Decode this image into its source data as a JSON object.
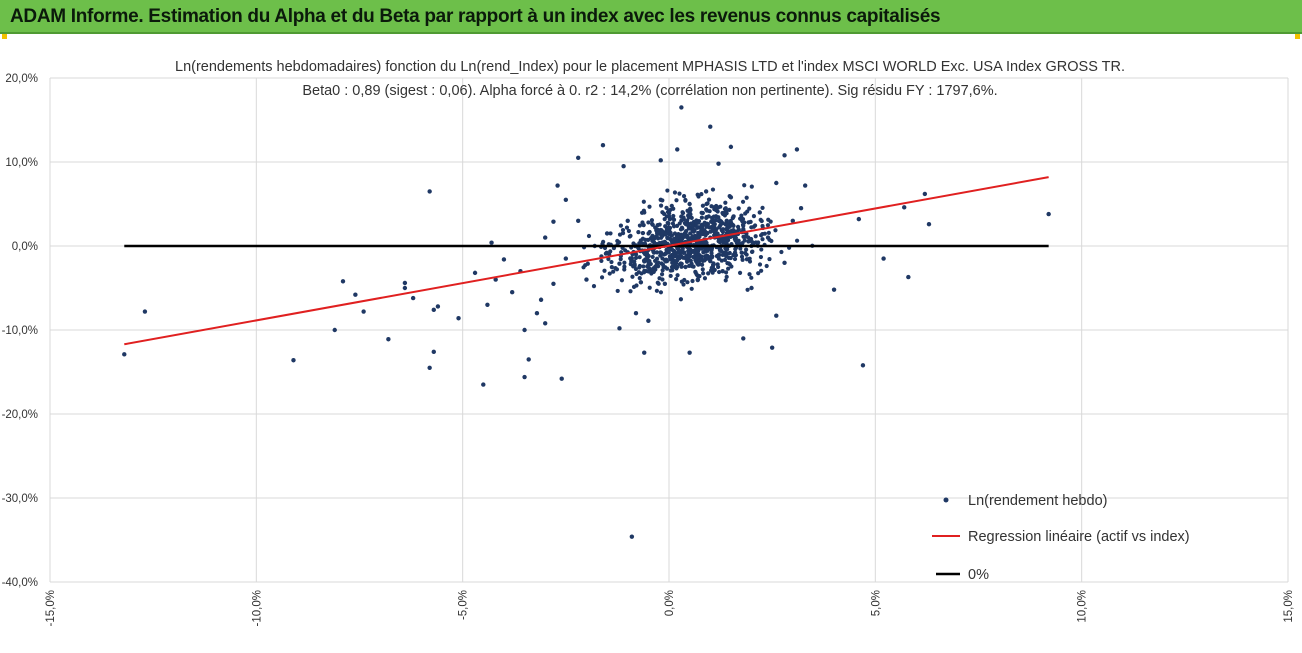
{
  "header": {
    "title": "ADAM Informe. Estimation du Alpha et du Beta par rapport à un index avec les revenus connus capitalisés"
  },
  "colors": {
    "header_bg": "#6dbf4a",
    "points": "#1f3864",
    "regression": "#e02020",
    "zero_line": "#000000",
    "grid": "#d9d9d9"
  },
  "chart_data": {
    "type": "scatter",
    "title": "Ln(rendements hebdomadaires) fonction du Ln(rend_Index) pour le placement MPHASIS LTD et l'index MSCI WORLD Exc. USA Index GROSS TR.",
    "subtitle": "Beta0 : 0,89 (sigest : 0,06). Alpha forcé à 0. r2 : 14,2% (corrélation non pertinente). Sig résidu FY : 1797,6%.",
    "xlabel": "",
    "ylabel": "",
    "xlim": [
      -0.15,
      0.15
    ],
    "ylim": [
      -0.4,
      0.2
    ],
    "x_ticks": [
      -0.15,
      -0.1,
      -0.05,
      0.0,
      0.05,
      0.1,
      0.15
    ],
    "x_tick_labels": [
      "-15,0%",
      "-10,0%",
      "-5,0%",
      "0,0%",
      "5,0%",
      "10,0%",
      "15,0%"
    ],
    "y_ticks": [
      0.2,
      0.1,
      0.0,
      -0.1,
      -0.2,
      -0.3,
      -0.4
    ],
    "y_tick_labels": [
      "20,0%",
      "10,0%",
      "0,0%",
      "-10,0%",
      "-20,0%",
      "-30,0%",
      "-40,0%"
    ],
    "grid": true,
    "legend_position": "bottom-right",
    "series": [
      {
        "name": "Ln(rendement hebdo)",
        "kind": "scatter",
        "points": [
          [
            -0.132,
            -0.129
          ],
          [
            -0.127,
            -0.078
          ],
          [
            -0.091,
            -0.136
          ],
          [
            -0.079,
            -0.042
          ],
          [
            -0.081,
            -0.1
          ],
          [
            -0.076,
            -0.058
          ],
          [
            -0.074,
            -0.078
          ],
          [
            -0.068,
            -0.111
          ],
          [
            -0.064,
            -0.044
          ],
          [
            -0.064,
            -0.05
          ],
          [
            -0.062,
            -0.062
          ],
          [
            -0.058,
            0.065
          ],
          [
            -0.058,
            -0.145
          ],
          [
            -0.057,
            -0.126
          ],
          [
            -0.057,
            -0.076
          ],
          [
            -0.056,
            -0.072
          ],
          [
            -0.051,
            -0.086
          ],
          [
            -0.047,
            -0.032
          ],
          [
            -0.045,
            -0.165
          ],
          [
            -0.044,
            -0.07
          ],
          [
            -0.043,
            0.004
          ],
          [
            -0.042,
            -0.04
          ],
          [
            -0.04,
            -0.016
          ],
          [
            -0.038,
            -0.055
          ],
          [
            -0.036,
            -0.03
          ],
          [
            -0.035,
            -0.1
          ],
          [
            -0.035,
            -0.156
          ],
          [
            -0.034,
            -0.135
          ],
          [
            -0.032,
            -0.08
          ],
          [
            -0.031,
            -0.064
          ],
          [
            -0.03,
            -0.092
          ],
          [
            -0.028,
            0.029
          ],
          [
            -0.027,
            0.072
          ],
          [
            -0.026,
            -0.158
          ],
          [
            -0.025,
            0.055
          ],
          [
            -0.022,
            0.105
          ],
          [
            -0.016,
            0.12
          ],
          [
            -0.011,
            0.095
          ],
          [
            -0.012,
            -0.098
          ],
          [
            -0.008,
            -0.08
          ],
          [
            -0.006,
            -0.127
          ],
          [
            -0.005,
            -0.089
          ],
          [
            -0.002,
            0.102
          ],
          [
            0.002,
            0.115
          ],
          [
            0.003,
            0.165
          ],
          [
            0.005,
            -0.127
          ],
          [
            0.01,
            0.142
          ],
          [
            0.012,
            0.098
          ],
          [
            0.015,
            0.118
          ],
          [
            0.018,
            -0.11
          ],
          [
            0.025,
            -0.121
          ],
          [
            0.026,
            -0.083
          ],
          [
            0.028,
            0.108
          ],
          [
            0.031,
            0.115
          ],
          [
            0.033,
            0.072
          ],
          [
            0.04,
            -0.052
          ],
          [
            0.046,
            0.032
          ],
          [
            0.047,
            -0.142
          ],
          [
            0.052,
            -0.015
          ],
          [
            0.057,
            0.046
          ],
          [
            0.058,
            -0.037
          ],
          [
            0.062,
            0.062
          ],
          [
            0.063,
            0.026
          ],
          [
            0.092,
            0.038
          ],
          [
            -0.009,
            -0.346
          ]
        ],
        "cloud_core_sample": [
          [
            -0.018,
            0.0
          ],
          [
            -0.015,
            0.015
          ],
          [
            -0.012,
            -0.021
          ],
          [
            -0.01,
            0.03
          ],
          [
            -0.008,
            -0.01
          ],
          [
            -0.006,
            0.04
          ],
          [
            -0.005,
            -0.03
          ],
          [
            -0.004,
            0.012
          ],
          [
            -0.002,
            0.055
          ],
          [
            -0.001,
            -0.045
          ],
          [
            0.0,
            0.02
          ],
          [
            0.001,
            -0.012
          ],
          [
            0.002,
            0.008
          ],
          [
            0.003,
            0.035
          ],
          [
            0.004,
            -0.025
          ],
          [
            0.005,
            0.05
          ],
          [
            0.006,
            0.001
          ],
          [
            0.007,
            -0.04
          ],
          [
            0.008,
            0.025
          ],
          [
            0.009,
            0.065
          ],
          [
            0.01,
            -0.018
          ],
          [
            0.011,
            0.044
          ],
          [
            0.012,
            0.012
          ],
          [
            0.013,
            -0.03
          ],
          [
            0.014,
            0.03
          ],
          [
            0.015,
            0.058
          ],
          [
            0.016,
            -0.008
          ],
          [
            0.018,
            0.02
          ],
          [
            0.02,
            -0.05
          ],
          [
            0.022,
            0.04
          ],
          [
            0.024,
            0.01
          ],
          [
            0.026,
            0.075
          ],
          [
            0.028,
            -0.02
          ],
          [
            0.03,
            0.03
          ],
          [
            0.032,
            0.045
          ],
          [
            -0.02,
            -0.04
          ],
          [
            -0.022,
            0.03
          ],
          [
            -0.025,
            -0.015
          ],
          [
            -0.028,
            -0.045
          ],
          [
            -0.03,
            0.01
          ]
        ]
      },
      {
        "name": "Regression linéaire (actif vs index)",
        "kind": "line",
        "points": [
          [
            -0.132,
            -0.117
          ],
          [
            0.092,
            0.082
          ]
        ]
      },
      {
        "name": "0%",
        "kind": "line",
        "points": [
          [
            -0.132,
            0.0
          ],
          [
            0.092,
            0.0
          ]
        ]
      }
    ]
  }
}
